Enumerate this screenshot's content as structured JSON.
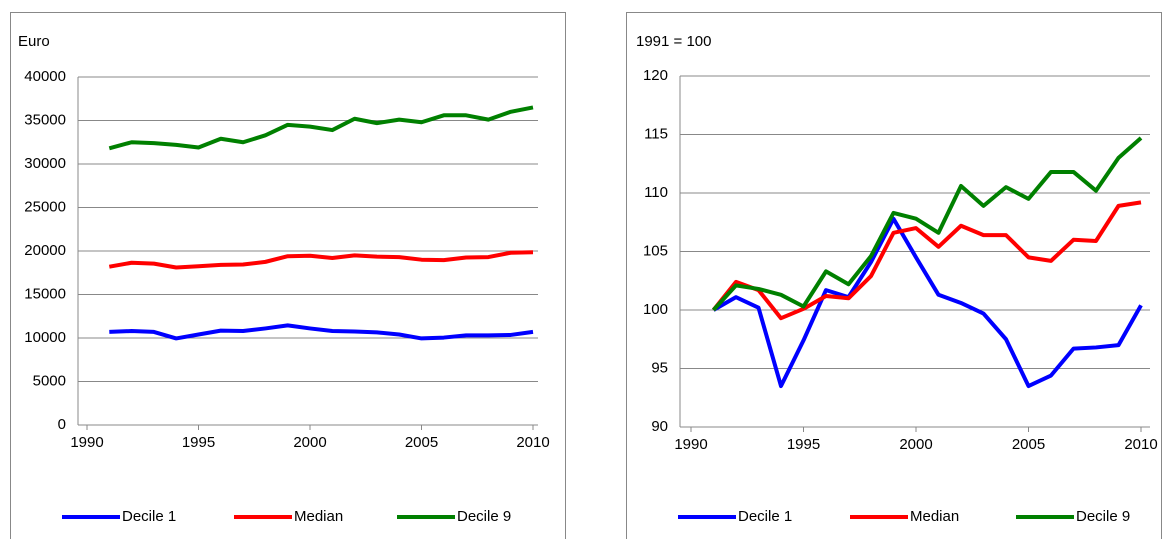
{
  "chart_data": [
    {
      "type": "line",
      "y_label": "Euro",
      "x": [
        1991,
        1992,
        1993,
        1994,
        1995,
        1996,
        1997,
        1998,
        1999,
        2000,
        2001,
        2002,
        2003,
        2004,
        2005,
        2006,
        2007,
        2008,
        2009,
        2010
      ],
      "series": [
        {
          "name": "Decile 1",
          "color": "#0000ff",
          "values": [
            10700,
            10800,
            10700,
            9950,
            10400,
            10850,
            10800,
            11100,
            11450,
            11100,
            10800,
            10750,
            10650,
            10400,
            9950,
            10050,
            10300,
            10300,
            10350,
            10700
          ]
        },
        {
          "name": "Median",
          "color": "#ff0000",
          "values": [
            18200,
            18650,
            18550,
            18100,
            18250,
            18400,
            18450,
            18750,
            19400,
            19450,
            19200,
            19500,
            19350,
            19300,
            19000,
            18950,
            19250,
            19300,
            19800,
            19850
          ]
        },
        {
          "name": "Decile 9",
          "color": "#008000",
          "values": [
            31800,
            32500,
            32400,
            32200,
            31900,
            32900,
            32500,
            33300,
            34500,
            34300,
            33900,
            35200,
            34700,
            35100,
            34800,
            35600,
            35600,
            35100,
            36000,
            36500
          ]
        }
      ],
      "xlim": [
        1990,
        2010
      ],
      "xticks": [
        1990,
        1995,
        2000,
        2005,
        2010
      ],
      "ylim": [
        0,
        40000
      ],
      "yticks": [
        0,
        5000,
        10000,
        15000,
        20000,
        25000,
        30000,
        35000,
        40000
      ],
      "grid": true
    },
    {
      "type": "line",
      "y_label": "1991 = 100",
      "x": [
        1991,
        1992,
        1993,
        1994,
        1995,
        1996,
        1997,
        1998,
        1999,
        2000,
        2001,
        2002,
        2003,
        2004,
        2005,
        2006,
        2007,
        2008,
        2009,
        2010
      ],
      "series": [
        {
          "name": "Decile 1",
          "color": "#0000ff",
          "values": [
            100,
            101.1,
            100.2,
            93.5,
            97.4,
            101.7,
            101.1,
            104.1,
            107.8,
            104.5,
            101.3,
            100.6,
            99.7,
            97.5,
            93.5,
            94.4,
            96.7,
            96.8,
            97.0,
            100.4
          ]
        },
        {
          "name": "Median",
          "color": "#ff0000",
          "values": [
            100,
            102.4,
            101.7,
            99.3,
            100.1,
            101.2,
            101.0,
            102.9,
            106.6,
            107.0,
            105.4,
            107.2,
            106.4,
            106.4,
            104.5,
            104.2,
            106.0,
            105.9,
            108.9,
            109.2
          ]
        },
        {
          "name": "Decile 9",
          "color": "#008000",
          "values": [
            100,
            102.1,
            101.8,
            101.3,
            100.3,
            103.3,
            102.2,
            104.6,
            108.3,
            107.8,
            106.6,
            110.6,
            108.9,
            110.5,
            109.5,
            111.8,
            111.8,
            110.2,
            113.0,
            114.7
          ]
        }
      ],
      "xlim": [
        1990,
        2010
      ],
      "xticks": [
        1990,
        1995,
        2000,
        2005,
        2010
      ],
      "ylim": [
        90,
        120
      ],
      "yticks": [
        90,
        95,
        100,
        105,
        110,
        115,
        120
      ],
      "grid": true
    }
  ]
}
